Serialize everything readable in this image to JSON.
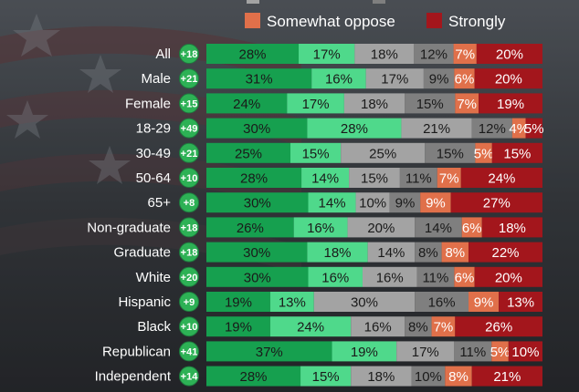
{
  "chart_data": {
    "type": "bar",
    "orientation": "horizontal-stacked-percent",
    "legend": {
      "placement": "top",
      "items": [
        {
          "key": "somewhat_oppose",
          "label": "Somewhat oppose",
          "color": "#e0704a"
        },
        {
          "key": "strongly_oppose",
          "label": "Strongly",
          "color": "#a3161c"
        }
      ]
    },
    "segment_colors": [
      "#16a04f",
      "#4fd98b",
      "#a3a3a3",
      "#7f7f7f",
      "#e0704a",
      "#a3161c"
    ],
    "badge_color": "#2db155",
    "categories": [
      "All",
      "Male",
      "Female",
      "18-29",
      "30-49",
      "50-64",
      "65+",
      "Non-graduate",
      "Graduate",
      "White",
      "Hispanic",
      "Black",
      "Republican",
      "Independent"
    ],
    "net": [
      "+18",
      "+21",
      "+15",
      "+49",
      "+21",
      "+10",
      "+8",
      "+18",
      "+18",
      "+20",
      "+9",
      "+10",
      "+41",
      "+14"
    ],
    "rows": [
      [
        28,
        17,
        18,
        12,
        7,
        20
      ],
      [
        31,
        16,
        17,
        9,
        6,
        20
      ],
      [
        24,
        17,
        18,
        15,
        7,
        19
      ],
      [
        30,
        28,
        21,
        12,
        4,
        5
      ],
      [
        25,
        15,
        25,
        15,
        5,
        15
      ],
      [
        28,
        14,
        15,
        11,
        7,
        24
      ],
      [
        30,
        14,
        10,
        9,
        9,
        27
      ],
      [
        26,
        16,
        20,
        14,
        6,
        18
      ],
      [
        30,
        18,
        14,
        8,
        8,
        22
      ],
      [
        30,
        16,
        16,
        11,
        6,
        20
      ],
      [
        19,
        13,
        30,
        16,
        9,
        13
      ],
      [
        19,
        24,
        16,
        8,
        7,
        26
      ],
      [
        37,
        19,
        17,
        11,
        5,
        10
      ],
      [
        28,
        15,
        18,
        10,
        8,
        21
      ]
    ]
  }
}
